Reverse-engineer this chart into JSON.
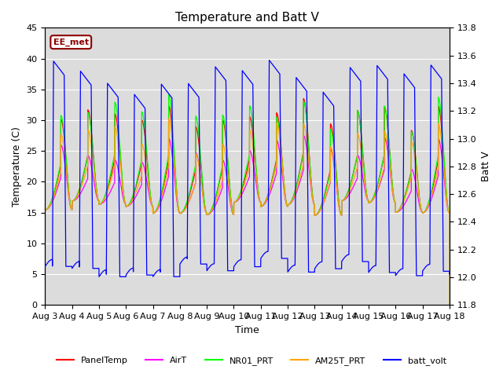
{
  "title": "Temperature and Batt V",
  "xlabel": "Time",
  "ylabel_left": "Temperature (C)",
  "ylabel_right": "Batt V",
  "ylim_left": [
    0,
    45
  ],
  "ylim_right": [
    11.8,
    13.8
  ],
  "yticks_left": [
    0,
    5,
    10,
    15,
    20,
    25,
    30,
    35,
    40,
    45
  ],
  "yticks_right": [
    11.8,
    12.0,
    12.2,
    12.4,
    12.6,
    12.8,
    13.0,
    13.2,
    13.4,
    13.6,
    13.8
  ],
  "xtick_labels": [
    "Aug 3",
    "Aug 4",
    "Aug 5",
    "Aug 6",
    "Aug 7",
    "Aug 8",
    "Aug 9",
    "Aug 10",
    "Aug 11",
    "Aug 12",
    "Aug 13",
    "Aug 14",
    "Aug 15",
    "Aug 16",
    "Aug 17",
    "Aug 18"
  ],
  "annotation_text": "EE_met",
  "annotation_color": "#8B0000",
  "bg_color": "#dcdcdc",
  "grid_color": "white",
  "colors": {
    "PanelTemp": "red",
    "AirT": "magenta",
    "NR01_PRT": "lime",
    "AM25T_PRT": "orange",
    "batt_volt": "blue"
  },
  "n_days": 15
}
